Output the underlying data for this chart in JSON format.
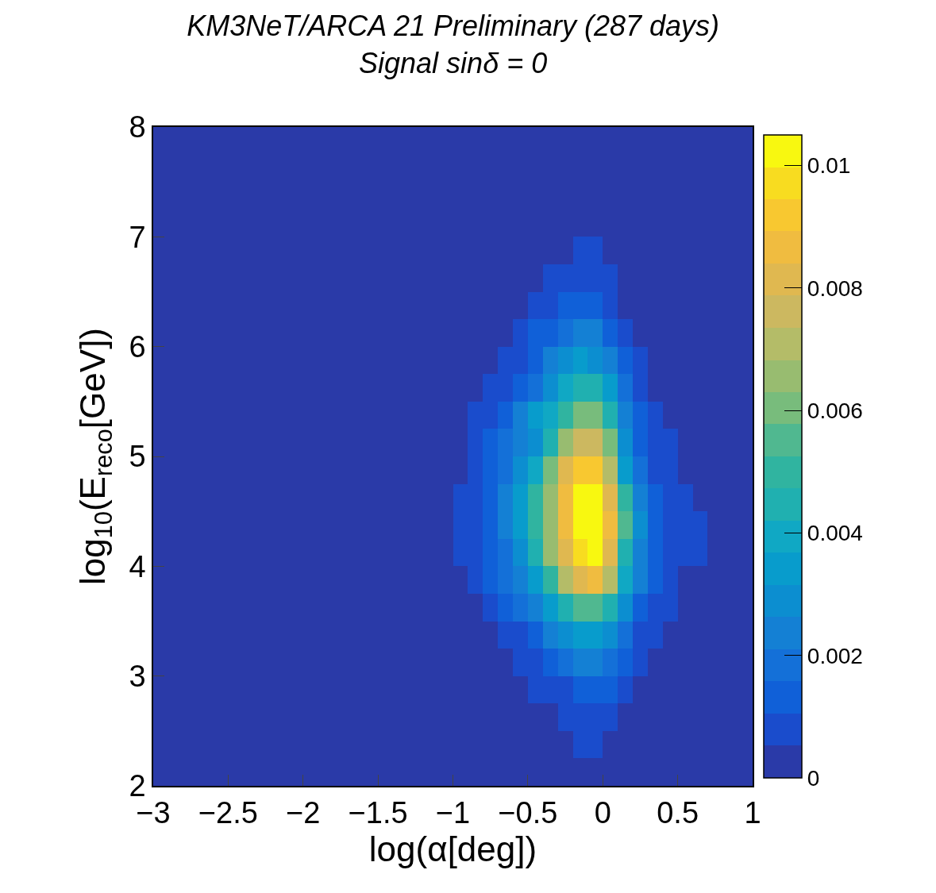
{
  "chart_data": {
    "type": "heatmap",
    "title": "KM3NeT/ARCA 21 Preliminary (287 days)",
    "subtitle": "Signal sinδ = 0",
    "xlabel": "log(α[deg])",
    "ylabel": "log$_{10}$(E$_{reco}$[GeV])",
    "x": [
      -2.95,
      -2.85,
      -2.75,
      -2.65,
      -2.55,
      -2.45,
      -2.35,
      -2.25,
      -2.15,
      -2.05,
      -1.95,
      -1.85,
      -1.75,
      -1.65,
      -1.55,
      -1.45,
      -1.35,
      -1.25,
      -1.15,
      -1.05,
      -0.95,
      -0.85,
      -0.75,
      -0.65,
      -0.55,
      -0.45,
      -0.35,
      -0.25,
      -0.15,
      -0.05,
      0.05,
      0.15,
      0.25,
      0.35,
      0.45,
      0.55,
      0.65,
      0.75,
      0.85,
      0.95
    ],
    "y": [
      7.875,
      7.625,
      7.375,
      7.125,
      6.875,
      6.625,
      6.375,
      6.125,
      5.875,
      5.625,
      5.375,
      5.125,
      4.875,
      4.625,
      4.375,
      4.125,
      3.875,
      3.625,
      3.375,
      3.125,
      2.875,
      2.625,
      2.375,
      2.125
    ],
    "cells": [
      [
        0,
        0,
        0,
        0,
        0,
        0,
        0,
        0,
        0,
        0,
        0,
        0,
        0,
        0,
        0,
        0,
        0,
        0,
        0,
        0,
        0,
        0,
        0,
        0,
        0,
        0,
        0,
        0,
        0,
        0,
        0,
        0,
        0,
        0,
        0,
        0,
        0,
        0,
        0,
        0
      ],
      [
        0,
        0,
        0,
        0,
        0,
        0,
        0,
        0,
        0,
        0,
        0,
        0,
        0,
        0,
        0,
        0,
        0,
        0,
        0,
        0,
        0,
        0,
        0,
        0,
        0,
        0,
        0,
        0,
        0,
        0,
        0,
        0,
        0,
        0,
        0,
        0,
        0,
        0,
        0,
        0
      ],
      [
        0,
        0,
        0,
        0,
        0,
        0,
        0,
        0,
        0,
        0,
        0,
        0,
        0,
        0,
        0,
        0,
        0,
        0,
        0,
        0,
        0,
        0,
        0,
        0,
        0,
        0,
        0,
        0,
        0,
        0,
        0,
        0,
        0,
        0,
        0,
        0,
        0,
        0,
        0,
        0
      ],
      [
        0,
        0,
        0,
        0,
        0,
        0,
        0,
        0,
        0,
        0,
        0,
        0,
        0,
        0,
        0,
        0,
        0,
        0,
        0,
        0,
        0,
        0,
        0,
        0,
        0,
        0,
        0,
        0,
        0,
        0,
        0,
        0,
        0,
        0,
        0,
        0,
        0,
        0,
        0,
        0
      ],
      [
        0,
        0,
        0,
        0,
        0,
        0,
        0,
        0,
        0,
        0,
        0,
        0,
        0,
        0,
        0,
        0,
        0,
        0,
        0,
        0,
        0,
        0,
        0,
        0,
        0,
        0,
        0,
        0,
        0.0008,
        0.0008,
        0,
        0,
        0,
        0,
        0,
        0,
        0,
        0,
        0,
        0
      ],
      [
        0,
        0,
        0,
        0,
        0,
        0,
        0,
        0,
        0,
        0,
        0,
        0,
        0,
        0,
        0,
        0,
        0,
        0,
        0,
        0,
        0,
        0,
        0,
        0,
        0,
        0,
        0.0008,
        0.0008,
        0.0008,
        0.0008,
        0.0008,
        0,
        0,
        0,
        0,
        0,
        0,
        0,
        0,
        0
      ],
      [
        0,
        0,
        0,
        0,
        0,
        0,
        0,
        0,
        0,
        0,
        0,
        0,
        0,
        0,
        0,
        0,
        0,
        0,
        0,
        0,
        0,
        0,
        0,
        0,
        0,
        0.0008,
        0.0008,
        0.0013,
        0.0013,
        0.0013,
        0.0008,
        0,
        0,
        0,
        0,
        0,
        0,
        0,
        0,
        0
      ],
      [
        0,
        0,
        0,
        0,
        0,
        0,
        0,
        0,
        0,
        0,
        0,
        0,
        0,
        0,
        0,
        0,
        0,
        0,
        0,
        0,
        0,
        0,
        0,
        0,
        0.0008,
        0.0013,
        0.0013,
        0.0018,
        0.0024,
        0.0024,
        0.0013,
        0.0008,
        0,
        0,
        0,
        0,
        0,
        0,
        0,
        0
      ],
      [
        0,
        0,
        0,
        0,
        0,
        0,
        0,
        0,
        0,
        0,
        0,
        0,
        0,
        0,
        0,
        0,
        0,
        0,
        0,
        0,
        0,
        0,
        0,
        0.0008,
        0.0008,
        0.0013,
        0.0024,
        0.0029,
        0.0034,
        0.0029,
        0.0024,
        0.0013,
        0.0008,
        0,
        0,
        0,
        0,
        0,
        0,
        0
      ],
      [
        0,
        0,
        0,
        0,
        0,
        0,
        0,
        0,
        0,
        0,
        0,
        0,
        0,
        0,
        0,
        0,
        0,
        0,
        0,
        0,
        0,
        0,
        0.0008,
        0.0008,
        0.0013,
        0.0018,
        0.0029,
        0.0039,
        0.0045,
        0.0045,
        0.0034,
        0.0018,
        0.0008,
        0,
        0,
        0,
        0,
        0,
        0,
        0
      ],
      [
        0,
        0,
        0,
        0,
        0,
        0,
        0,
        0,
        0,
        0,
        0,
        0,
        0,
        0,
        0,
        0,
        0,
        0,
        0,
        0,
        0,
        0.0008,
        0.0008,
        0.0013,
        0.0024,
        0.0034,
        0.0039,
        0.005,
        0.006,
        0.006,
        0.0045,
        0.0024,
        0.0013,
        0.0008,
        0,
        0,
        0,
        0,
        0,
        0
      ],
      [
        0,
        0,
        0,
        0,
        0,
        0,
        0,
        0,
        0,
        0,
        0,
        0,
        0,
        0,
        0,
        0,
        0,
        0,
        0,
        0,
        0,
        0.0008,
        0.0013,
        0.0018,
        0.0024,
        0.0029,
        0.0045,
        0.0066,
        0.0076,
        0.0076,
        0.006,
        0.0029,
        0.0013,
        0.0008,
        0.0008,
        0,
        0,
        0,
        0,
        0
      ],
      [
        0,
        0,
        0,
        0,
        0,
        0,
        0,
        0,
        0,
        0,
        0,
        0,
        0,
        0,
        0,
        0,
        0,
        0,
        0,
        0,
        0,
        0.0008,
        0.0013,
        0.0018,
        0.0029,
        0.0039,
        0.006,
        0.0081,
        0.0092,
        0.0092,
        0.0071,
        0.0034,
        0.0018,
        0.0008,
        0.0008,
        0,
        0,
        0,
        0,
        0
      ],
      [
        0,
        0,
        0,
        0,
        0,
        0,
        0,
        0,
        0,
        0,
        0,
        0,
        0,
        0,
        0,
        0,
        0,
        0,
        0,
        0,
        0.0008,
        0.0008,
        0.0013,
        0.0024,
        0.0034,
        0.005,
        0.0066,
        0.0087,
        0.0103,
        0.0103,
        0.0081,
        0.005,
        0.0024,
        0.0013,
        0.0008,
        0.0008,
        0,
        0,
        0,
        0
      ],
      [
        0,
        0,
        0,
        0,
        0,
        0,
        0,
        0,
        0,
        0,
        0,
        0,
        0,
        0,
        0,
        0,
        0,
        0,
        0,
        0,
        0.0008,
        0.0008,
        0.0013,
        0.0024,
        0.0034,
        0.005,
        0.0066,
        0.0087,
        0.0103,
        0.0103,
        0.0087,
        0.0055,
        0.0029,
        0.0013,
        0.0008,
        0.0008,
        0.0008,
        0,
        0,
        0
      ],
      [
        0,
        0,
        0,
        0,
        0,
        0,
        0,
        0,
        0,
        0,
        0,
        0,
        0,
        0,
        0,
        0,
        0,
        0,
        0,
        0,
        0.0008,
        0.0008,
        0.0013,
        0.0018,
        0.0029,
        0.0045,
        0.0066,
        0.0081,
        0.0097,
        0.0103,
        0.0081,
        0.0045,
        0.0024,
        0.0013,
        0.0008,
        0.0008,
        0.0008,
        0,
        0,
        0
      ],
      [
        0,
        0,
        0,
        0,
        0,
        0,
        0,
        0,
        0,
        0,
        0,
        0,
        0,
        0,
        0,
        0,
        0,
        0,
        0,
        0,
        0,
        0.0008,
        0.0013,
        0.0018,
        0.0024,
        0.0034,
        0.005,
        0.0071,
        0.0081,
        0.0087,
        0.0071,
        0.0039,
        0.0024,
        0.0013,
        0.0008,
        0,
        0,
        0,
        0,
        0
      ],
      [
        0,
        0,
        0,
        0,
        0,
        0,
        0,
        0,
        0,
        0,
        0,
        0,
        0,
        0,
        0,
        0,
        0,
        0,
        0,
        0,
        0,
        0,
        0.0008,
        0.0013,
        0.0018,
        0.0024,
        0.0034,
        0.0045,
        0.0055,
        0.0055,
        0.0045,
        0.0029,
        0.0013,
        0.0008,
        0.0008,
        0,
        0,
        0,
        0,
        0
      ],
      [
        0,
        0,
        0,
        0,
        0,
        0,
        0,
        0,
        0,
        0,
        0,
        0,
        0,
        0,
        0,
        0,
        0,
        0,
        0,
        0,
        0,
        0,
        0,
        0.0008,
        0.0008,
        0.0013,
        0.0024,
        0.0029,
        0.0034,
        0.0034,
        0.0029,
        0.0018,
        0.0008,
        0.0008,
        0,
        0,
        0,
        0,
        0,
        0
      ],
      [
        0,
        0,
        0,
        0,
        0,
        0,
        0,
        0,
        0,
        0,
        0,
        0,
        0,
        0,
        0,
        0,
        0,
        0,
        0,
        0,
        0,
        0,
        0,
        0,
        0.0008,
        0.0008,
        0.0013,
        0.0018,
        0.0024,
        0.0024,
        0.0018,
        0.0013,
        0.0008,
        0,
        0,
        0,
        0,
        0,
        0,
        0
      ],
      [
        0,
        0,
        0,
        0,
        0,
        0,
        0,
        0,
        0,
        0,
        0,
        0,
        0,
        0,
        0,
        0,
        0,
        0,
        0,
        0,
        0,
        0,
        0,
        0,
        0,
        0.0008,
        0.0008,
        0.0008,
        0.0013,
        0.0013,
        0.0013,
        0.0008,
        0,
        0,
        0,
        0,
        0,
        0,
        0,
        0
      ],
      [
        0,
        0,
        0,
        0,
        0,
        0,
        0,
        0,
        0,
        0,
        0,
        0,
        0,
        0,
        0,
        0,
        0,
        0,
        0,
        0,
        0,
        0,
        0,
        0,
        0,
        0,
        0,
        0.0008,
        0.0008,
        0.0008,
        0.0008,
        0,
        0,
        0,
        0,
        0,
        0,
        0,
        0,
        0
      ],
      [
        0,
        0,
        0,
        0,
        0,
        0,
        0,
        0,
        0,
        0,
        0,
        0,
        0,
        0,
        0,
        0,
        0,
        0,
        0,
        0,
        0,
        0,
        0,
        0,
        0,
        0,
        0,
        0,
        0.0008,
        0.0008,
        0,
        0,
        0,
        0,
        0,
        0,
        0,
        0,
        0,
        0
      ],
      [
        0,
        0,
        0,
        0,
        0,
        0,
        0,
        0,
        0,
        0,
        0,
        0,
        0,
        0,
        0,
        0,
        0,
        0,
        0,
        0,
        0,
        0,
        0,
        0,
        0,
        0,
        0,
        0,
        0,
        0,
        0,
        0,
        0,
        0,
        0,
        0,
        0,
        0,
        0,
        0
      ]
    ],
    "xlim": [
      -3,
      1
    ],
    "xticks": [
      -3,
      -2.5,
      -2,
      -1.5,
      -1,
      -0.5,
      0,
      0.5,
      1
    ],
    "ylim": [
      2,
      8
    ],
    "yticks": [
      2,
      3,
      4,
      5,
      6,
      7,
      8
    ],
    "clim": [
      0,
      0.0105
    ],
    "cticks": [
      0,
      0.002,
      0.004,
      0.006,
      0.008,
      0.01
    ]
  }
}
